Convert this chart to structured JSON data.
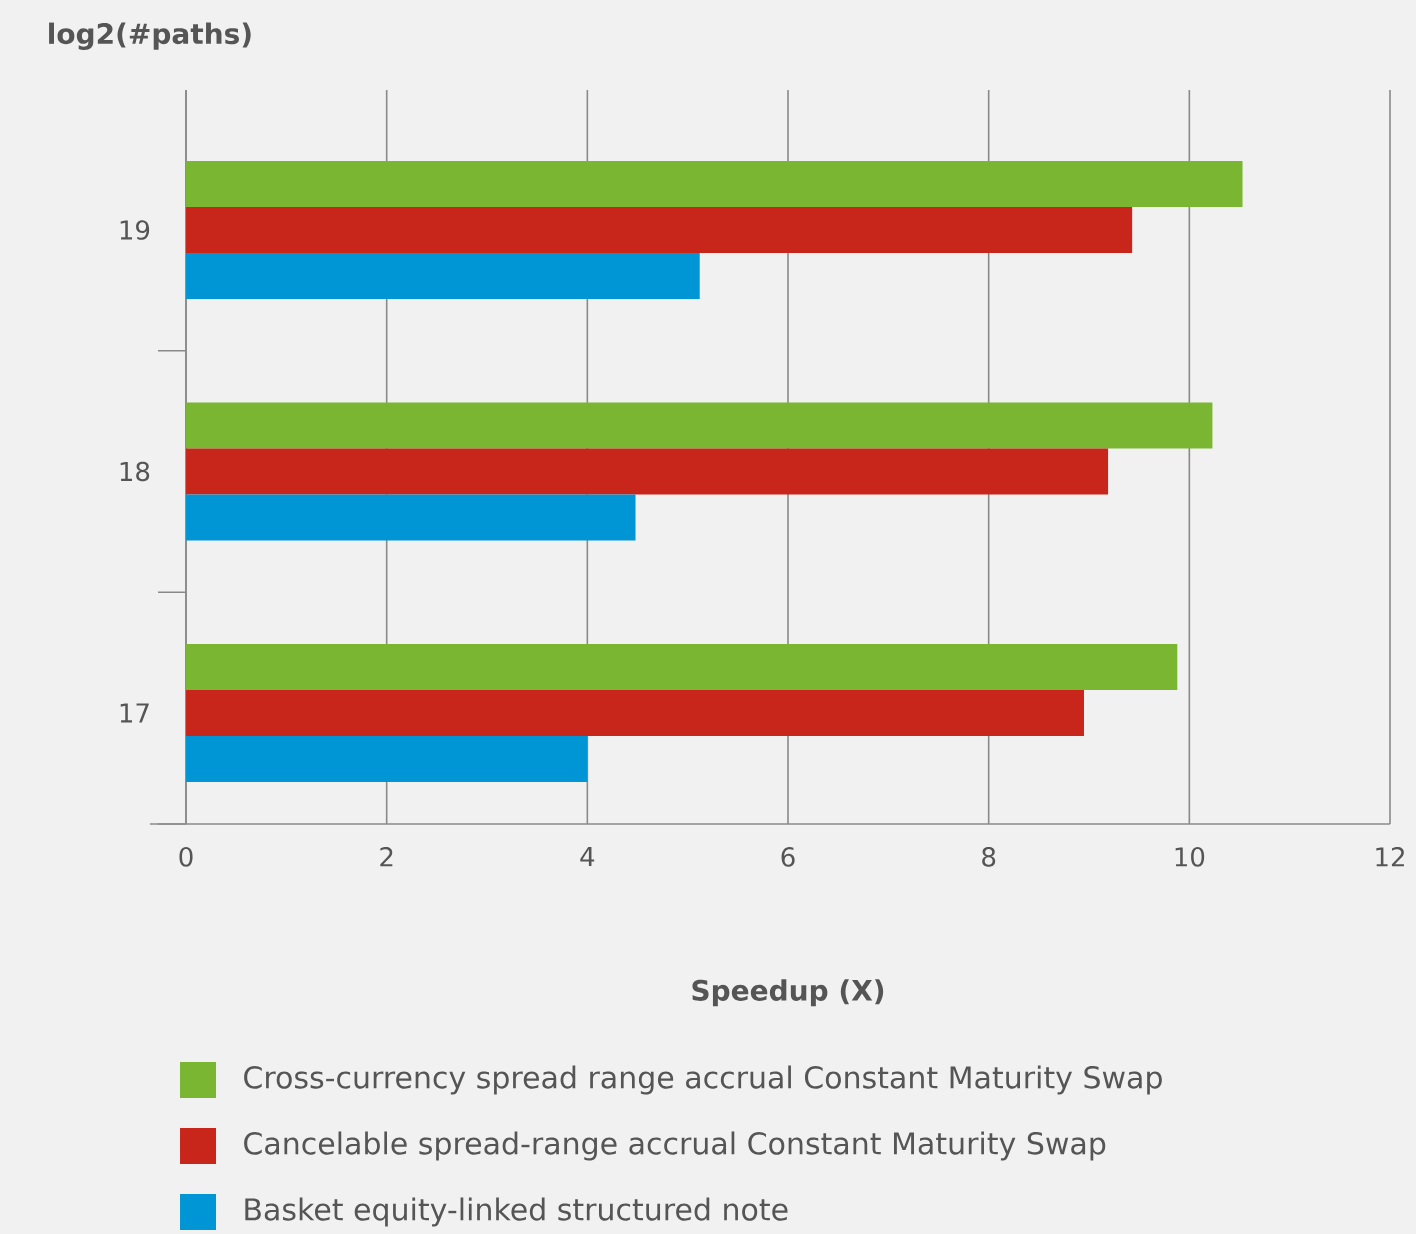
{
  "chart_data": {
    "type": "bar",
    "orientation": "horizontal",
    "xlabel": "Speedup (X)",
    "ylabel": "log2(#paths)",
    "categories": [
      "19",
      "18",
      "17"
    ],
    "series": [
      {
        "name": "Cross-currency spread range accrual Constant Maturity Swap",
        "color": "#7ab632",
        "values": [
          10.53,
          10.23,
          9.88
        ]
      },
      {
        "name": "Cancelable spread-range accrual Constant Maturity Swap",
        "color": "#c8261b",
        "values": [
          9.43,
          9.19,
          8.95
        ]
      },
      {
        "name": "Basket equity-linked structured note",
        "color": "#0096d6",
        "values": [
          5.12,
          4.48,
          4.0
        ]
      }
    ],
    "xlim": [
      0,
      12
    ],
    "xticks": [
      0,
      2,
      4,
      6,
      8,
      10,
      12
    ],
    "grid": "x",
    "legend": "bottom"
  }
}
